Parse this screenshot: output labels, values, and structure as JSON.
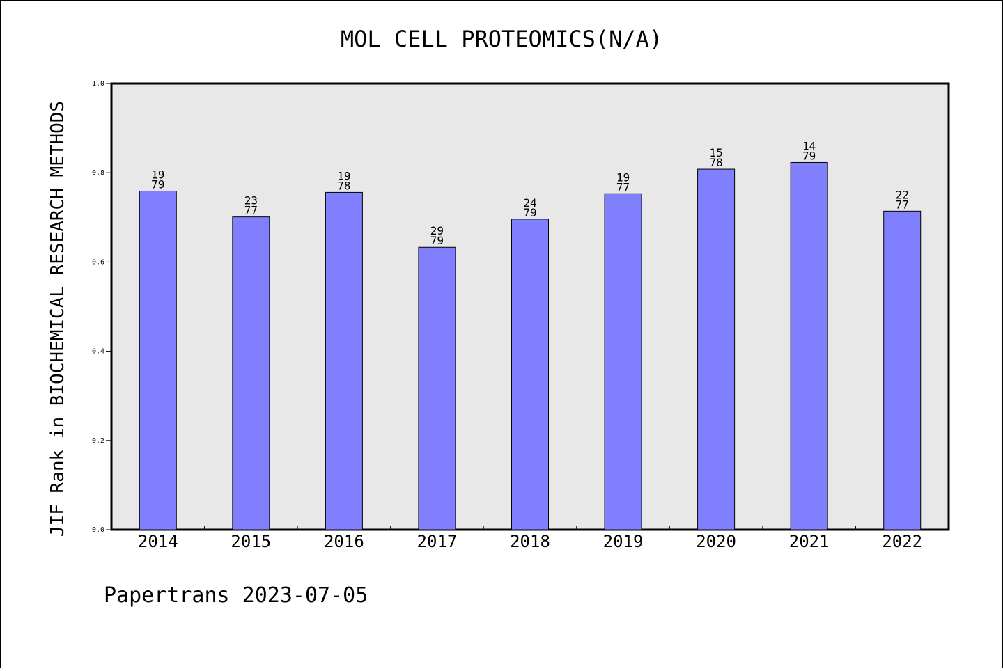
{
  "chart_data": {
    "type": "bar",
    "title": "MOL CELL PROTEOMICS(N/A)",
    "ylabel": "JIF Rank in BIOCHEMICAL RESEARCH METHODS",
    "xlabel": "",
    "ylim": [
      0,
      1.0
    ],
    "yticks": [
      "0.0",
      "0.2",
      "0.4",
      "0.6",
      "0.8",
      "1.0"
    ],
    "categories": [
      "2014",
      "2015",
      "2016",
      "2017",
      "2018",
      "2019",
      "2020",
      "2021",
      "2022"
    ],
    "values": [
      0.759,
      0.701,
      0.756,
      0.633,
      0.696,
      0.753,
      0.808,
      0.823,
      0.714
    ],
    "labels": [
      [
        "19",
        "79"
      ],
      [
        "23",
        "77"
      ],
      [
        "19",
        "78"
      ],
      [
        "29",
        "79"
      ],
      [
        "24",
        "79"
      ],
      [
        "19",
        "77"
      ],
      [
        "15",
        "78"
      ],
      [
        "14",
        "79"
      ],
      [
        "22",
        "77"
      ]
    ],
    "bar_color": "#8080ff",
    "plot_background": "#e8e8e8",
    "grid": false
  },
  "footer": "Papertrans 2023-07-05"
}
